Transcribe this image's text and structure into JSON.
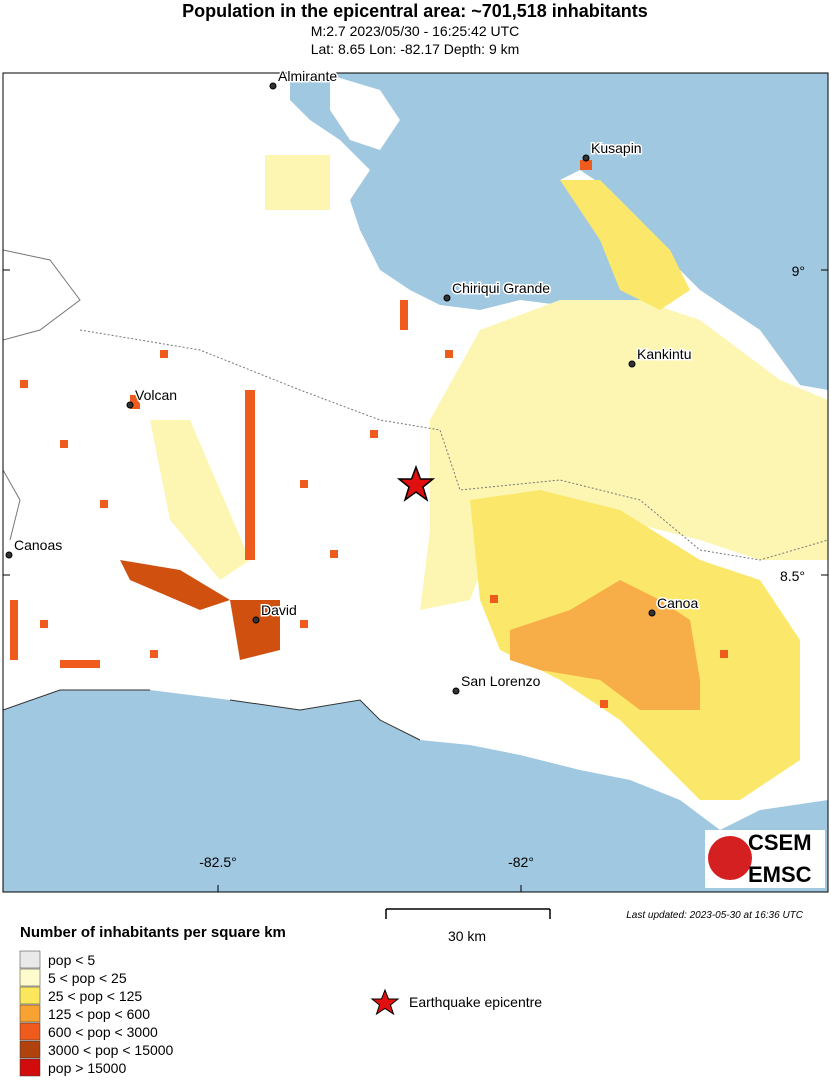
{
  "header": {
    "title": "Population in the epicentral area: ~701,518 inhabitants",
    "line1": "M:2.7 2023/05/30 - 16:25:42 UTC",
    "line2": "Lat: 8.65 Lon: -82.17 Depth: 9 km"
  },
  "map": {
    "cities": [
      "Almirante",
      "Kusapin",
      "Chiriqui Grande",
      "Kankintu",
      "Volcan",
      "Canoas",
      "David",
      "Canoa",
      "San Lorenzo"
    ],
    "lat_labels": [
      "9°",
      "8.5°"
    ],
    "lon_labels": [
      "-82.5°",
      "-82°"
    ],
    "logo": [
      "CSEM",
      "EMSC"
    ]
  },
  "scale": "30 km",
  "updated": "Last updated: 2023-05-30 at 16:36 UTC",
  "legend": {
    "title": "Number of inhabitants per square km",
    "items": [
      {
        "label": "pop < 5",
        "color": "#e9e9e9"
      },
      {
        "label": "5 < pop < 25",
        "color": "#fefccc"
      },
      {
        "label": "25 < pop < 125",
        "color": "#fae75c"
      },
      {
        "label": "125 < pop < 600",
        "color": "#f8a232"
      },
      {
        "label": "600 < pop < 3000",
        "color": "#ee5b1c"
      },
      {
        "label": "3000 < pop < 15000",
        "color": "#b0420e"
      },
      {
        "label": "pop > 15000",
        "color": "#d20c0c"
      }
    ]
  },
  "epicentre": "Earthquake epicentre"
}
